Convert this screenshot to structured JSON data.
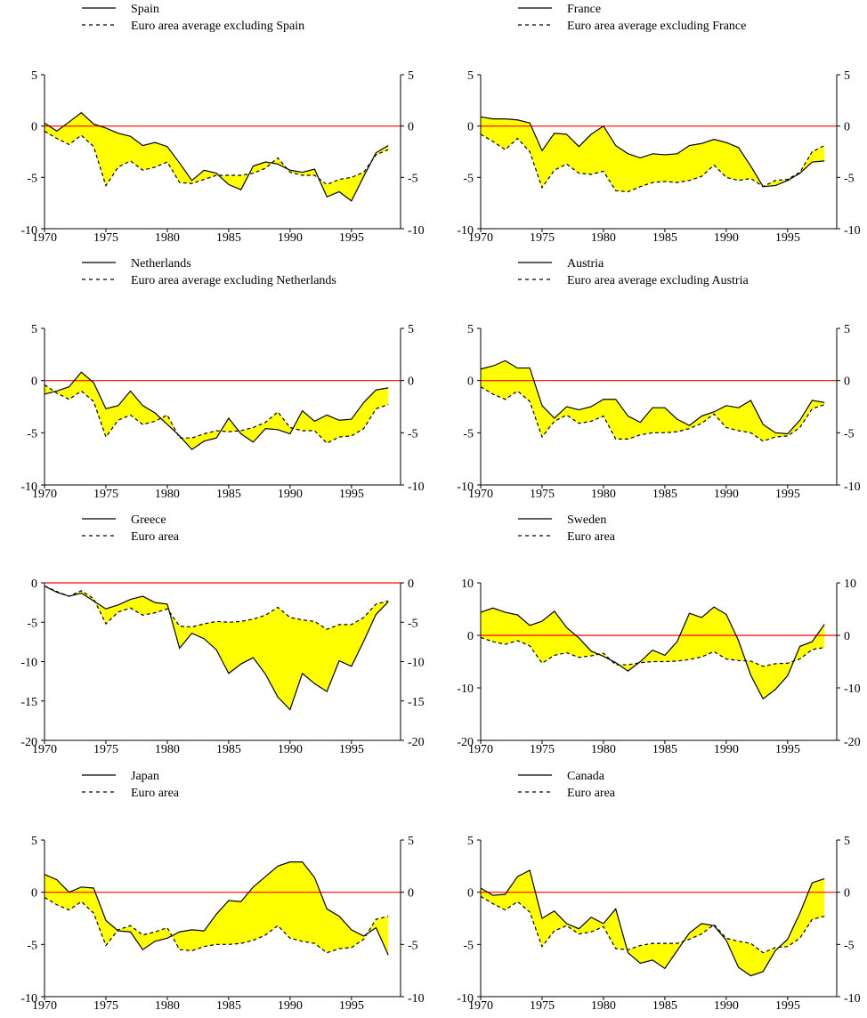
{
  "colors": {
    "fill": "#ffff00",
    "zero_line": "#ff0000",
    "country": "#000000",
    "euro": "#000000"
  },
  "chart_data": [
    {
      "type": "line",
      "legend_position": "top-left",
      "x": [
        1970,
        1971,
        1972,
        1973,
        1974,
        1975,
        1976,
        1977,
        1978,
        1979,
        1980,
        1981,
        1982,
        1983,
        1984,
        1985,
        1986,
        1987,
        1988,
        1989,
        1990,
        1991,
        1992,
        1993,
        1994,
        1995,
        1996,
        1997,
        1998
      ],
      "xlim": [
        1970,
        1999
      ],
      "xticks": [
        1970,
        1975,
        1980,
        1985,
        1990,
        1995
      ],
      "ylim": [
        -10,
        5
      ],
      "yticks": [
        -10,
        -5,
        0,
        5
      ],
      "series": [
        {
          "name": "Spain",
          "style": "solid",
          "values": [
            0.3,
            -0.5,
            0.4,
            1.3,
            0.2,
            -0.2,
            -0.7,
            -1.0,
            -1.9,
            -1.6,
            -2.0,
            -3.6,
            -5.3,
            -4.3,
            -4.6,
            -5.7,
            -6.2,
            -3.9,
            -3.5,
            -3.7,
            -4.3,
            -4.5,
            -4.2,
            -6.9,
            -6.4,
            -7.3,
            -4.9,
            -2.6,
            -1.9
          ]
        },
        {
          "name": "Euro area average excluding Spain",
          "style": "dashed",
          "values": [
            -0.5,
            -1.2,
            -1.8,
            -0.9,
            -2.0,
            -5.8,
            -4.0,
            -3.4,
            -4.3,
            -4.0,
            -3.5,
            -5.5,
            -5.6,
            -5.2,
            -4.8,
            -4.8,
            -4.8,
            -4.6,
            -4.1,
            -3.1,
            -4.5,
            -4.8,
            -4.8,
            -5.7,
            -5.2,
            -5.0,
            -4.5,
            -2.8,
            -2.3
          ]
        }
      ]
    },
    {
      "type": "line",
      "legend_position": "top-left",
      "x": [
        1970,
        1971,
        1972,
        1973,
        1974,
        1975,
        1976,
        1977,
        1978,
        1979,
        1980,
        1981,
        1982,
        1983,
        1984,
        1985,
        1986,
        1987,
        1988,
        1989,
        1990,
        1991,
        1992,
        1993,
        1994,
        1995,
        1996,
        1997,
        1998
      ],
      "xlim": [
        1970,
        1999
      ],
      "xticks": [
        1970,
        1975,
        1980,
        1985,
        1990,
        1995
      ],
      "ylim": [
        -10,
        5
      ],
      "yticks": [
        -10,
        -5,
        0,
        5
      ],
      "series": [
        {
          "name": "France",
          "style": "solid",
          "values": [
            0.9,
            0.7,
            0.7,
            0.6,
            0.3,
            -2.4,
            -0.7,
            -0.8,
            -2.0,
            -0.8,
            0.0,
            -1.9,
            -2.7,
            -3.1,
            -2.7,
            -2.8,
            -2.7,
            -1.9,
            -1.7,
            -1.3,
            -1.6,
            -2.1,
            -3.9,
            -5.9,
            -5.8,
            -5.3,
            -4.6,
            -3.5,
            -3.4
          ]
        },
        {
          "name": "Euro area average excluding France",
          "style": "dashed",
          "values": [
            -0.8,
            -1.5,
            -2.3,
            -1.2,
            -2.5,
            -6.0,
            -4.3,
            -3.7,
            -4.6,
            -4.7,
            -4.4,
            -6.3,
            -6.4,
            -5.9,
            -5.5,
            -5.4,
            -5.5,
            -5.3,
            -4.9,
            -3.8,
            -5.0,
            -5.3,
            -5.1,
            -5.9,
            -5.3,
            -5.2,
            -4.5,
            -2.5,
            -1.9
          ]
        }
      ]
    },
    {
      "type": "line",
      "legend_position": "top-left",
      "x": [
        1970,
        1971,
        1972,
        1973,
        1974,
        1975,
        1976,
        1977,
        1978,
        1979,
        1980,
        1981,
        1982,
        1983,
        1984,
        1985,
        1986,
        1987,
        1988,
        1989,
        1990,
        1991,
        1992,
        1993,
        1994,
        1995,
        1996,
        1997,
        1998
      ],
      "xlim": [
        1970,
        1999
      ],
      "xticks": [
        1970,
        1975,
        1980,
        1985,
        1990,
        1995
      ],
      "ylim": [
        -10,
        5
      ],
      "yticks": [
        -10,
        -5,
        0,
        5
      ],
      "series": [
        {
          "name": "Netherlands",
          "style": "solid",
          "values": [
            -1.3,
            -1.0,
            -0.6,
            0.8,
            -0.2,
            -2.7,
            -2.4,
            -1.0,
            -2.4,
            -3.1,
            -4.2,
            -5.3,
            -6.6,
            -5.8,
            -5.5,
            -3.6,
            -5.1,
            -5.9,
            -4.6,
            -4.7,
            -5.1,
            -2.9,
            -3.9,
            -3.3,
            -3.8,
            -3.7,
            -2.1,
            -0.9,
            -0.7
          ]
        },
        {
          "name": "Euro area average excluding Netherlands",
          "style": "dashed",
          "values": [
            -0.4,
            -1.2,
            -1.8,
            -1.0,
            -2.0,
            -5.4,
            -3.8,
            -3.3,
            -4.2,
            -3.9,
            -3.3,
            -5.5,
            -5.5,
            -5.1,
            -4.8,
            -4.9,
            -4.8,
            -4.5,
            -4.0,
            -3.0,
            -4.5,
            -4.8,
            -4.8,
            -6.0,
            -5.4,
            -5.3,
            -4.6,
            -2.7,
            -2.3
          ]
        }
      ]
    },
    {
      "type": "line",
      "legend_position": "top-left",
      "x": [
        1970,
        1971,
        1972,
        1973,
        1974,
        1975,
        1976,
        1977,
        1978,
        1979,
        1980,
        1981,
        1982,
        1983,
        1984,
        1985,
        1986,
        1987,
        1988,
        1989,
        1990,
        1991,
        1992,
        1993,
        1994,
        1995,
        1996,
        1997,
        1998
      ],
      "xlim": [
        1970,
        1999
      ],
      "xticks": [
        1970,
        1975,
        1980,
        1985,
        1990,
        1995
      ],
      "ylim": [
        -10,
        5
      ],
      "yticks": [
        -10,
        -5,
        0,
        5
      ],
      "series": [
        {
          "name": "Austria",
          "style": "solid",
          "values": [
            1.1,
            1.4,
            1.9,
            1.2,
            1.2,
            -2.4,
            -3.6,
            -2.5,
            -2.8,
            -2.5,
            -1.8,
            -1.8,
            -3.4,
            -4.0,
            -2.6,
            -2.6,
            -3.7,
            -4.3,
            -3.4,
            -3.0,
            -2.4,
            -2.6,
            -1.9,
            -4.2,
            -5.0,
            -5.1,
            -3.8,
            -1.9,
            -2.1
          ]
        },
        {
          "name": "Euro area average excluding Austria",
          "style": "dashed",
          "values": [
            -0.6,
            -1.3,
            -1.8,
            -1.0,
            -2.0,
            -5.4,
            -3.9,
            -3.3,
            -4.1,
            -3.9,
            -3.4,
            -5.6,
            -5.6,
            -5.2,
            -5.0,
            -5.0,
            -4.9,
            -4.6,
            -4.1,
            -3.2,
            -4.5,
            -4.8,
            -5.0,
            -5.8,
            -5.4,
            -5.3,
            -4.5,
            -2.7,
            -2.3
          ]
        }
      ]
    },
    {
      "type": "line",
      "legend_position": "top-left",
      "x": [
        1970,
        1971,
        1972,
        1973,
        1974,
        1975,
        1976,
        1977,
        1978,
        1979,
        1980,
        1981,
        1982,
        1983,
        1984,
        1985,
        1986,
        1987,
        1988,
        1989,
        1990,
        1991,
        1992,
        1993,
        1994,
        1995,
        1996,
        1997,
        1998
      ],
      "xlim": [
        1970,
        1999
      ],
      "xticks": [
        1970,
        1975,
        1980,
        1985,
        1990,
        1995
      ],
      "ylim": [
        -20,
        0
      ],
      "yticks": [
        -20,
        -15,
        -10,
        -5,
        0
      ],
      "series": [
        {
          "name": "Greece",
          "style": "solid",
          "values": [
            -0.4,
            -1.2,
            -1.7,
            -1.3,
            -2.3,
            -3.3,
            -2.8,
            -2.1,
            -1.7,
            -2.5,
            -2.7,
            -8.3,
            -6.4,
            -7.1,
            -8.5,
            -11.5,
            -10.3,
            -9.5,
            -11.6,
            -14.5,
            -16.1,
            -11.5,
            -12.8,
            -13.8,
            -9.9,
            -10.6,
            -7.4,
            -4.0,
            -2.4
          ]
        },
        {
          "name": "Euro area",
          "style": "dashed",
          "values": [
            -0.4,
            -1.1,
            -1.7,
            -1.0,
            -2.0,
            -5.2,
            -3.7,
            -3.2,
            -4.1,
            -3.8,
            -3.3,
            -5.5,
            -5.6,
            -5.2,
            -4.9,
            -5.0,
            -4.9,
            -4.6,
            -4.1,
            -3.1,
            -4.4,
            -4.7,
            -4.9,
            -5.9,
            -5.3,
            -5.3,
            -4.4,
            -2.7,
            -2.3
          ]
        }
      ]
    },
    {
      "type": "line",
      "legend_position": "top-left",
      "x": [
        1970,
        1971,
        1972,
        1973,
        1974,
        1975,
        1976,
        1977,
        1978,
        1979,
        1980,
        1981,
        1982,
        1983,
        1984,
        1985,
        1986,
        1987,
        1988,
        1989,
        1990,
        1991,
        1992,
        1993,
        1994,
        1995,
        1996,
        1997,
        1998
      ],
      "xlim": [
        1970,
        1999
      ],
      "xticks": [
        1970,
        1975,
        1980,
        1985,
        1990,
        1995
      ],
      "ylim": [
        -20,
        10
      ],
      "yticks": [
        -20,
        -10,
        0,
        10
      ],
      "series": [
        {
          "name": "Sweden",
          "style": "solid",
          "values": [
            4.4,
            5.2,
            4.4,
            3.9,
            1.9,
            2.7,
            4.6,
            1.5,
            -0.5,
            -3.0,
            -4.0,
            -5.2,
            -6.8,
            -5.0,
            -2.8,
            -3.8,
            -1.2,
            4.2,
            3.4,
            5.4,
            4.0,
            -1.0,
            -7.6,
            -12.1,
            -10.3,
            -7.7,
            -2.1,
            -1.2,
            2.1
          ]
        },
        {
          "name": "Euro area",
          "style": "dashed",
          "values": [
            -0.4,
            -1.2,
            -1.7,
            -1.0,
            -2.0,
            -5.3,
            -3.8,
            -3.3,
            -4.2,
            -3.9,
            -3.4,
            -5.6,
            -5.6,
            -5.2,
            -5.0,
            -5.0,
            -4.9,
            -4.6,
            -4.1,
            -3.1,
            -4.5,
            -4.8,
            -4.9,
            -5.9,
            -5.4,
            -5.3,
            -4.5,
            -2.7,
            -2.3
          ]
        }
      ]
    },
    {
      "type": "line",
      "legend_position": "top-left",
      "x": [
        1970,
        1971,
        1972,
        1973,
        1974,
        1975,
        1976,
        1977,
        1978,
        1979,
        1980,
        1981,
        1982,
        1983,
        1984,
        1985,
        1986,
        1987,
        1988,
        1989,
        1990,
        1991,
        1992,
        1993,
        1994,
        1995,
        1996,
        1997,
        1998
      ],
      "xlim": [
        1970,
        1999
      ],
      "xticks": [
        1970,
        1975,
        1980,
        1985,
        1990,
        1995
      ],
      "ylim": [
        -10,
        5
      ],
      "yticks": [
        -10,
        -5,
        0,
        5
      ],
      "series": [
        {
          "name": "Japan",
          "style": "solid",
          "values": [
            1.7,
            1.2,
            0.0,
            0.5,
            0.4,
            -2.7,
            -3.7,
            -3.8,
            -5.5,
            -4.7,
            -4.4,
            -3.8,
            -3.6,
            -3.7,
            -2.1,
            -0.8,
            -0.9,
            0.5,
            1.5,
            2.5,
            2.9,
            2.9,
            1.4,
            -1.6,
            -2.3,
            -3.6,
            -4.2,
            -3.4,
            -6.0
          ]
        },
        {
          "name": "Euro area",
          "style": "dashed",
          "values": [
            -0.5,
            -1.2,
            -1.7,
            -0.9,
            -2.0,
            -5.1,
            -3.6,
            -3.2,
            -4.1,
            -3.8,
            -3.4,
            -5.5,
            -5.6,
            -5.2,
            -5.0,
            -5.0,
            -4.9,
            -4.6,
            -4.1,
            -3.2,
            -4.4,
            -4.7,
            -4.9,
            -5.8,
            -5.4,
            -5.3,
            -4.5,
            -2.6,
            -2.3
          ]
        }
      ]
    },
    {
      "type": "line",
      "legend_position": "top-left",
      "x": [
        1970,
        1971,
        1972,
        1973,
        1974,
        1975,
        1976,
        1977,
        1978,
        1979,
        1980,
        1981,
        1982,
        1983,
        1984,
        1985,
        1986,
        1987,
        1988,
        1989,
        1990,
        1991,
        1992,
        1993,
        1994,
        1995,
        1996,
        1997,
        1998
      ],
      "xlim": [
        1970,
        1999
      ],
      "xticks": [
        1970,
        1975,
        1980,
        1985,
        1990,
        1995
      ],
      "ylim": [
        -10,
        5
      ],
      "yticks": [
        -10,
        -5,
        0,
        5
      ],
      "series": [
        {
          "name": "Canada",
          "style": "solid",
          "values": [
            0.4,
            -0.3,
            -0.2,
            1.5,
            2.1,
            -2.5,
            -1.8,
            -3.0,
            -3.5,
            -2.4,
            -3.0,
            -1.6,
            -5.8,
            -6.8,
            -6.5,
            -7.3,
            -5.6,
            -3.9,
            -3.0,
            -3.2,
            -4.6,
            -7.2,
            -8.0,
            -7.6,
            -5.6,
            -4.5,
            -2.0,
            0.9,
            1.3
          ]
        },
        {
          "name": "Euro area",
          "style": "dashed",
          "values": [
            -0.4,
            -1.1,
            -1.7,
            -0.9,
            -1.9,
            -5.2,
            -3.7,
            -3.2,
            -4.0,
            -3.8,
            -3.3,
            -5.4,
            -5.5,
            -5.1,
            -4.9,
            -4.9,
            -4.9,
            -4.5,
            -4.0,
            -3.1,
            -4.4,
            -4.7,
            -4.9,
            -5.8,
            -5.3,
            -5.2,
            -4.4,
            -2.6,
            -2.3
          ]
        }
      ]
    }
  ]
}
